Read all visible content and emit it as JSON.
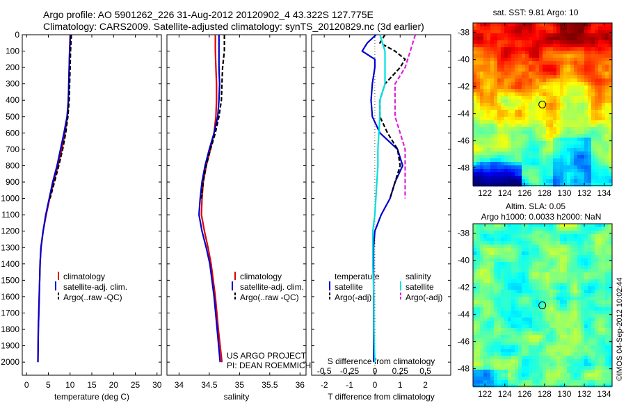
{
  "header": {
    "line1": "Argo profile: AO 5901262_226 31-Aug-2012 20120902_4 43.322S 127.775E",
    "line2": "Climatology: CARS2009. Satellite-adjusted climatology: synTS_20120829.nc (3d earlier)"
  },
  "colors": {
    "climatology": "#e00000",
    "satellite": "#0000d0",
    "argo": "#000000",
    "sal_satellite": "#00e0e0",
    "sal_argo": "#e020e0"
  },
  "legends": {
    "temp": [
      "climatology",
      "satellite-adj. clim.",
      "Argo(..raw -QC)"
    ],
    "sal": [
      "climatology",
      "satellite-adj. clim.",
      "Argo(..raw -QC)"
    ],
    "diff_temp_head": "temperature",
    "diff_sal_head": "salinity",
    "diff_items": [
      "satellite",
      "Argo(-adj)"
    ]
  },
  "project": {
    "line1": "US ARGO PROJECT",
    "line2": "PI: DEAN ROEMMICH"
  },
  "maps": {
    "sst_title": "sat. SST: 9.81  Argo: 10",
    "sla_title1": "Altim. SLA: 0.05",
    "sla_title2": "Argo h1000: 0.0033 h2000: NaN",
    "lat_ticks": [
      "-38",
      "-40",
      "-42",
      "-44",
      "-46",
      "-48"
    ],
    "lon_ticks": [
      "122",
      "124",
      "126",
      "128",
      "130",
      "132",
      "134"
    ],
    "float_lon": 127.775,
    "float_lat": -43.322
  },
  "stamp": "©IMOS 04-Sep-2012 10:02:44",
  "chart_data": [
    {
      "type": "line",
      "xlabel": "temperature (deg C)",
      "ylabel": "",
      "xlim": [
        -1,
        31
      ],
      "ylim": [
        2080,
        0
      ],
      "xticks": [
        "0",
        "5",
        "10",
        "15",
        "20",
        "25",
        "30"
      ],
      "yticks": [
        "0",
        "100",
        "200",
        "300",
        "400",
        "500",
        "600",
        "700",
        "800",
        "900",
        "1000",
        "1100",
        "1200",
        "1300",
        "1400",
        "1500",
        "1600",
        "1700",
        "1800",
        "1900",
        "2000"
      ],
      "series": [
        {
          "name": "climatology",
          "depth": [
            0,
            100,
            200,
            300,
            400,
            500,
            600,
            700,
            800,
            900,
            1000,
            1100,
            1200,
            1300,
            1400,
            1600,
            1800,
            2000
          ],
          "values": [
            10.0,
            9.9,
            9.8,
            9.7,
            9.6,
            9.4,
            8.8,
            8.1,
            7.2,
            6.2,
            5.3,
            4.5,
            3.8,
            3.3,
            3.1,
            2.9,
            2.7,
            2.6
          ]
        },
        {
          "name": "satellite-adj. clim.",
          "depth": [
            0,
            100,
            200,
            300,
            400,
            500,
            600,
            700,
            800,
            900,
            1000,
            1100,
            1200,
            1300,
            1400,
            1600,
            1800,
            2000
          ],
          "values": [
            10.1,
            9.9,
            9.8,
            9.7,
            9.6,
            9.3,
            8.6,
            7.8,
            7.0,
            6.0,
            5.2,
            4.4,
            3.8,
            3.3,
            3.1,
            2.9,
            2.7,
            2.6
          ]
        },
        {
          "name": "Argo(..raw -QC)",
          "depth": [
            0,
            100,
            200,
            300,
            400,
            500,
            600,
            700,
            800,
            900,
            1000
          ],
          "values": [
            10.3,
            10.1,
            10.0,
            9.9,
            9.8,
            9.5,
            9.0,
            8.3,
            7.4,
            6.4,
            5.4
          ]
        }
      ]
    },
    {
      "type": "line",
      "xlabel": "salinity",
      "ylabel": "",
      "xlim": [
        33.8,
        36.1
      ],
      "ylim": [
        2080,
        0
      ],
      "xticks": [
        "34",
        "34.5",
        "35",
        "35.5",
        "36"
      ],
      "series": [
        {
          "name": "climatology",
          "depth": [
            0,
            100,
            200,
            300,
            400,
            500,
            600,
            700,
            800,
            900,
            1000,
            1100,
            1200,
            1300,
            1400,
            1600,
            1800,
            2000
          ],
          "values": [
            34.6,
            34.6,
            34.61,
            34.62,
            34.62,
            34.61,
            34.58,
            34.52,
            34.45,
            34.4,
            34.38,
            34.37,
            34.42,
            34.48,
            34.53,
            34.6,
            34.65,
            34.71
          ]
        },
        {
          "name": "satellite-adj. clim.",
          "depth": [
            0,
            100,
            200,
            300,
            400,
            500,
            600,
            700,
            800,
            900,
            1000,
            1100,
            1200,
            1300,
            1400,
            1600,
            1800,
            2000
          ],
          "values": [
            34.66,
            34.66,
            34.66,
            34.67,
            34.66,
            34.64,
            34.58,
            34.5,
            34.43,
            34.38,
            34.35,
            34.33,
            34.38,
            34.45,
            34.51,
            34.58,
            34.63,
            34.68
          ]
        },
        {
          "name": "Argo(..raw -QC)",
          "depth": [
            0,
            100,
            200,
            300,
            400,
            500,
            600,
            700,
            800,
            900,
            1000
          ],
          "values": [
            34.75,
            34.75,
            34.72,
            34.71,
            34.7,
            34.66,
            34.6,
            34.52,
            34.45,
            34.4,
            34.37
          ]
        }
      ]
    },
    {
      "type": "line",
      "xlabel": "T difference from climatology",
      "xlabel2": "S difference from climatology",
      "ylabel": "",
      "xlim": [
        -2.5,
        3.0
      ],
      "ylim": [
        2080,
        0
      ],
      "xticks": [
        "-2",
        "-1",
        "0",
        "1",
        "2"
      ],
      "xticks_s": [
        "-0.5",
        "-0.25",
        "0",
        "0.25",
        "0.5"
      ],
      "series": [
        {
          "name": "temperature satellite",
          "depth": [
            0,
            50,
            100,
            150,
            200,
            300,
            400,
            500,
            600,
            700,
            800,
            900,
            1000,
            1100,
            1200,
            1300,
            1400,
            1600,
            1800,
            2000
          ],
          "values": [
            0.05,
            -0.3,
            -0.5,
            0.0,
            0.0,
            -0.1,
            -0.15,
            -0.1,
            0.2,
            0.9,
            1.1,
            0.8,
            0.6,
            0.25,
            0.0,
            -0.05,
            -0.05,
            -0.05,
            -0.05,
            -0.05
          ]
        },
        {
          "name": "temperature Argo(-adj)",
          "depth": [
            0,
            50,
            100,
            150,
            200,
            300,
            400,
            500,
            600,
            700,
            800,
            900,
            1000
          ],
          "values": [
            0.4,
            0.2,
            0.8,
            1.2,
            1.0,
            0.4,
            0.2,
            0.2,
            0.5,
            0.9,
            1.0,
            0.8,
            0.6
          ]
        },
        {
          "name": "salinity satellite",
          "depth": [
            0,
            100,
            200,
            300,
            400,
            500,
            600,
            700,
            800,
            900,
            1000,
            1100,
            1200,
            1300,
            1400,
            1600,
            1800,
            2000
          ],
          "values": [
            0.05,
            0.1,
            0.1,
            0.1,
            0.05,
            0.05,
            0.04,
            0.03,
            0.03,
            0.02,
            0.01,
            0.0,
            -0.02,
            -0.02,
            -0.02,
            -0.01,
            -0.01,
            0.0
          ]
        },
        {
          "name": "salinity Argo(-adj)",
          "depth": [
            0,
            100,
            200,
            300,
            400,
            500,
            600,
            700,
            800,
            900,
            1000
          ],
          "values": [
            0.4,
            0.35,
            0.3,
            0.2,
            0.2,
            0.2,
            0.25,
            0.3,
            0.3,
            0.3,
            0.3
          ]
        }
      ]
    }
  ]
}
